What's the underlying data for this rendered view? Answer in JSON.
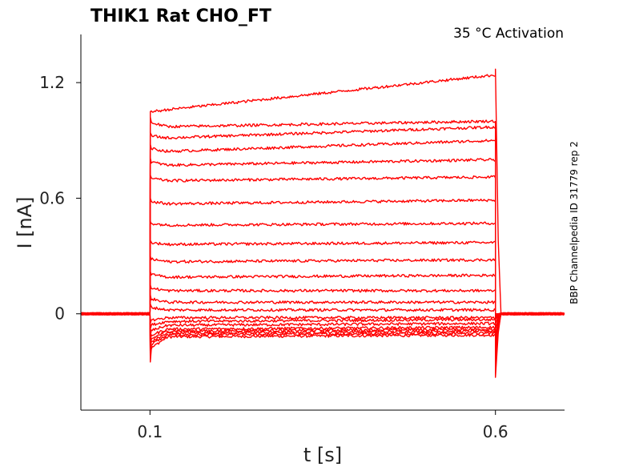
{
  "chart_data": {
    "type": "line",
    "title": "THIK1  Rat  CHO_FT",
    "subtitle": "35 °C  Activation",
    "xlabel": "t [s]",
    "ylabel": "I [nA]",
    "side_note": "BBP Channelpedia ID 31779 rep 2",
    "xlim": [
      0.0,
      0.7
    ],
    "ylim": [
      -0.5,
      1.45
    ],
    "xticks": [
      0.1,
      0.6
    ],
    "xtick_labels": [
      "0.1",
      "0.6"
    ],
    "yticks": [
      0,
      0.6,
      1.2
    ],
    "ytick_labels": [
      "0",
      "0.6",
      "1.2"
    ],
    "grid": false,
    "series_color": "#ff0000",
    "stimulus_on": 0.1,
    "stimulus_off": 0.6,
    "baseline": 0.0,
    "series": [
      {
        "onset_peak": -0.25,
        "steady_start": -0.12,
        "steady_end": -0.11,
        "offset_peak": -0.33
      },
      {
        "onset_peak": -0.22,
        "steady_start": -0.11,
        "steady_end": -0.1,
        "offset_peak": -0.28
      },
      {
        "onset_peak": -0.2,
        "steady_start": -0.1,
        "steady_end": -0.09,
        "offset_peak": -0.24
      },
      {
        "onset_peak": -0.18,
        "steady_start": -0.09,
        "steady_end": -0.08,
        "offset_peak": -0.2
      },
      {
        "onset_peak": -0.15,
        "steady_start": -0.08,
        "steady_end": -0.07,
        "offset_peak": -0.16
      },
      {
        "onset_peak": -0.12,
        "steady_start": -0.06,
        "steady_end": -0.05,
        "offset_peak": -0.12
      },
      {
        "onset_peak": -0.08,
        "steady_start": -0.04,
        "steady_end": -0.03,
        "offset_peak": -0.08
      },
      {
        "onset_peak": -0.05,
        "steady_start": -0.02,
        "steady_end": -0.02,
        "offset_peak": -0.05
      },
      {
        "onset_peak": 0.05,
        "steady_start": 0.02,
        "steady_end": 0.02,
        "offset_peak": -0.03
      },
      {
        "onset_peak": 0.1,
        "steady_start": 0.06,
        "steady_end": 0.06,
        "offset_peak": -0.02
      },
      {
        "onset_peak": 0.15,
        "steady_start": 0.12,
        "steady_end": 0.12,
        "offset_peak": -0.02
      },
      {
        "onset_peak": 0.22,
        "steady_start": 0.19,
        "steady_end": 0.2,
        "offset_peak": -0.02
      },
      {
        "onset_peak": 0.3,
        "steady_start": 0.27,
        "steady_end": 0.28,
        "offset_peak": -0.01
      },
      {
        "onset_peak": 0.38,
        "steady_start": 0.36,
        "steady_end": 0.37,
        "offset_peak": -0.01
      },
      {
        "onset_peak": 0.48,
        "steady_start": 0.46,
        "steady_end": 0.47,
        "offset_peak": -0.01
      },
      {
        "onset_peak": 0.6,
        "steady_start": 0.57,
        "steady_end": 0.59,
        "offset_peak": -0.01
      },
      {
        "onset_peak": 0.72,
        "steady_start": 0.69,
        "steady_end": 0.71,
        "offset_peak": -0.01
      },
      {
        "onset_peak": 0.81,
        "steady_start": 0.77,
        "steady_end": 0.8,
        "offset_peak": 0.0
      },
      {
        "onset_peak": 0.88,
        "steady_start": 0.84,
        "steady_end": 0.9,
        "offset_peak": 0.0
      },
      {
        "onset_peak": 0.94,
        "steady_start": 0.91,
        "steady_end": 0.97,
        "offset_peak": 0.0
      },
      {
        "onset_peak": 1.02,
        "steady_start": 0.97,
        "steady_end": 1.0,
        "offset_peak": 0.0
      },
      {
        "onset_peak": 1.05,
        "steady_start": 1.05,
        "steady_end": 1.24,
        "offset_peak": 1.27
      }
    ]
  }
}
